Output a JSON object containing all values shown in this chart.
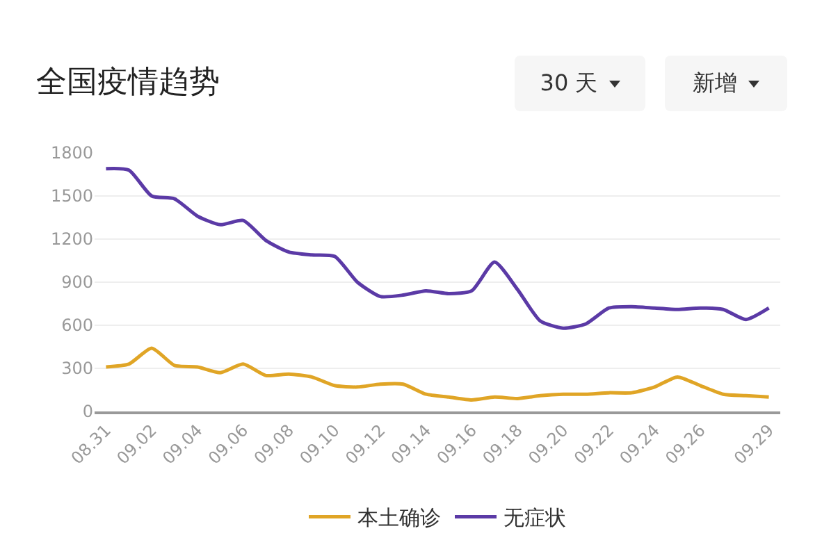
{
  "chart_data": {
    "type": "line",
    "title": "全国疫情趋势",
    "annotations": [
      "30 天",
      "新增"
    ],
    "categories": [
      "08.31",
      null,
      "09.02",
      null,
      "09.04",
      null,
      "09.06",
      null,
      "09.08",
      null,
      "09.10",
      null,
      "09.12",
      null,
      "09.14",
      null,
      "09.16",
      null,
      "09.18",
      null,
      "09.20",
      null,
      "09.22",
      null,
      "09.24",
      null,
      "09.26",
      null,
      null,
      "09.29"
    ],
    "series": [
      {
        "name": "本土确诊",
        "color": "#e0a526",
        "values": [
          310,
          330,
          440,
          320,
          310,
          270,
          330,
          250,
          260,
          240,
          180,
          170,
          190,
          190,
          120,
          100,
          80,
          100,
          90,
          110,
          120,
          120,
          130,
          130,
          170,
          240,
          180,
          120,
          110,
          100
        ]
      },
      {
        "name": "无症状",
        "color": "#5b3aa6",
        "values": [
          1690,
          1680,
          1500,
          1480,
          1360,
          1300,
          1330,
          1190,
          1110,
          1090,
          1080,
          900,
          800,
          810,
          840,
          820,
          840,
          1040,
          850,
          630,
          580,
          610,
          720,
          730,
          720,
          710,
          720,
          710,
          640,
          720
        ]
      }
    ],
    "ylim": [
      0,
      1800
    ],
    "yticks": [
      0,
      300,
      600,
      900,
      1200,
      1500,
      1800
    ],
    "grid": "y",
    "legend": "bottom",
    "marker": "none",
    "line_style": "solid"
  }
}
